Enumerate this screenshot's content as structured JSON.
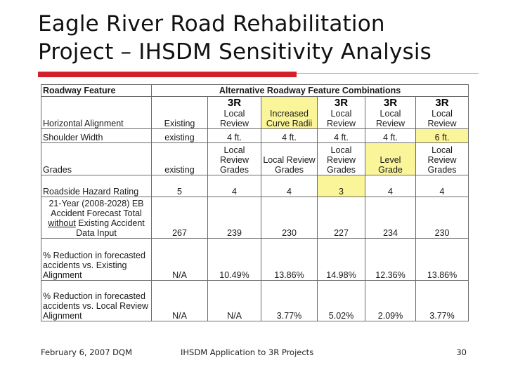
{
  "slide": {
    "title_line1": "Eagle River Road Rehabilitation",
    "title_line2": "Project – IHSDM Sensitivity Analysis"
  },
  "table": {
    "header_feature": "Roadway Feature",
    "header_combos": "Alternative Roadway Feature Combinations",
    "rows": {
      "horizontal_alignment": {
        "label": "Horizontal Alignment",
        "existing": "Existing",
        "c1_tag": "3R",
        "c1": "Local Review",
        "c2": "Increased Curve Radii",
        "c3_tag": "3R",
        "c3": "Local Review",
        "c4_tag": "3R",
        "c4": "Local Review",
        "c5_tag": "3R",
        "c5": "Local Review"
      },
      "shoulder_width": {
        "label": "Shoulder Width",
        "existing": "existing",
        "c1": "4 ft.",
        "c2": "4 ft.",
        "c3": "4 ft.",
        "c4": "4 ft.",
        "c5": "6 ft."
      },
      "grades": {
        "label": "Grades",
        "existing": "existing",
        "c1": "Local Review Grades",
        "c2": "Local Review Grades",
        "c3": "Local Review Grades",
        "c4": "Level Grade",
        "c5": "Local Review Grades"
      },
      "roadside_hazard": {
        "label": "Roadside Hazard Rating",
        "existing": "5",
        "c1": "4",
        "c2": "4",
        "c3": "3",
        "c4": "4",
        "c5": "4"
      },
      "accident_forecast": {
        "label_a": "21-Year (2008-2028) EB Accident Forecast Total ",
        "label_ul": "without",
        "label_b": " Existing Accident Data Input",
        "existing": "267",
        "c1": "239",
        "c2": "230",
        "c3": "227",
        "c4": "234",
        "c5": "230"
      },
      "reduction_existing": {
        "label": "% Reduction in forecasted accidents vs. Existing Alignment",
        "existing": "N/A",
        "c1": "10.49%",
        "c2": "13.86%",
        "c3": "14.98%",
        "c4": "12.36%",
        "c5": "13.86%"
      },
      "reduction_local": {
        "label": "% Reduction in forecasted accidents vs. Local Review Alignment",
        "existing": "N/A",
        "c1": "N/A",
        "c2": "3.77%",
        "c3": "5.02%",
        "c4": "2.09%",
        "c5": "3.77%"
      }
    },
    "highlight_color": "#fbf59a"
  },
  "footer": {
    "date": "February 6, 2007 DQM",
    "center": "IHSDM Application to 3R Projects",
    "page": "30"
  },
  "colors": {
    "accent_red": "#d4202a",
    "rule_gray": "#b0b0b0"
  }
}
